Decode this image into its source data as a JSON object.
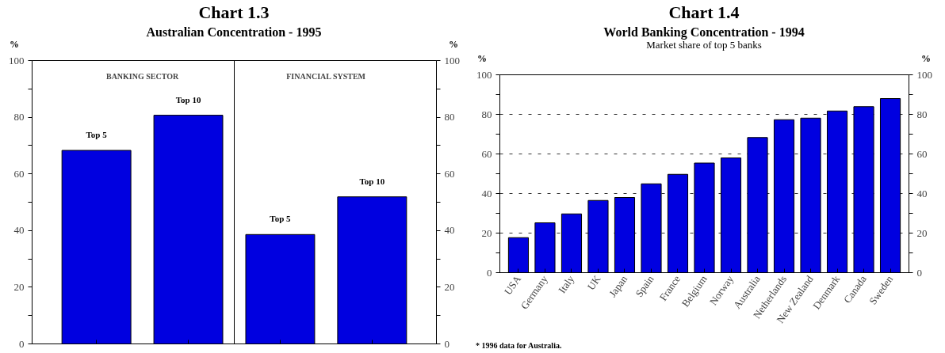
{
  "chart_data": [
    {
      "type": "bar",
      "title": "Chart 1.3",
      "subtitle": "Australian Concentration - 1995",
      "ylabel": "%",
      "y2label": "%",
      "categories": [
        "Top 5",
        "Top 10",
        "Top 5",
        "Top 10"
      ],
      "values": [
        68.3,
        80.7,
        38.6,
        51.9
      ],
      "color": "#0000e0",
      "ylim": [
        0,
        100
      ],
      "yticks": [
        0,
        {
          "value": 10,
          "label": null
        },
        20,
        {
          "value": 30,
          "label": null
        },
        40,
        {
          "value": 50,
          "label": null
        },
        60,
        {
          "value": 70,
          "label": null
        },
        80,
        {
          "value": 90,
          "label": null
        },
        100
      ],
      "y2lim": [
        0,
        100
      ],
      "y2ticks": [
        0,
        {
          "value": 10,
          "label": null
        },
        20,
        {
          "value": 30,
          "label": null
        },
        40,
        {
          "value": 50,
          "label": null
        },
        60,
        {
          "value": 70,
          "label": null
        },
        80,
        {
          "value": 90,
          "label": null
        },
        100
      ],
      "annotations": [
        "BANKING SECTOR",
        "FINANCIAL SYSTEM"
      ],
      "grid": false
    },
    {
      "type": "bar",
      "title": "Chart 1.4",
      "subtitle": "World Banking Concentration - 1994",
      "ylabel": "%",
      "y2label": "%",
      "categories": [
        "USA",
        "Germany",
        "Italy",
        "UK",
        "Japan",
        "Spain",
        "France",
        "Belgium",
        "Norway",
        "Australia",
        "Netherlands",
        "New Zealand",
        "Denmark",
        "Canada",
        "Sweden"
      ],
      "values": [
        17.7,
        25.2,
        29.7,
        36.5,
        38.0,
        44.9,
        49.7,
        55.4,
        58.0,
        68.3,
        77.3,
        78.1,
        81.7,
        83.9,
        88.0
      ],
      "color": "#0000e0",
      "ylim": [
        0,
        100
      ],
      "yticks": [
        0,
        {
          "value": 10,
          "label": null
        },
        20,
        {
          "value": 30,
          "label": null
        },
        40,
        {
          "value": 50,
          "label": null
        },
        60,
        {
          "value": 70,
          "label": null
        },
        80,
        {
          "value": 90,
          "label": null
        },
        100
      ],
      "y2lim": [
        0,
        100
      ],
      "y2ticks": [
        0,
        {
          "value": 10,
          "label": null
        },
        20,
        {
          "value": 30,
          "label": null
        },
        40,
        {
          "value": 50,
          "label": null
        },
        60,
        {
          "value": 70,
          "label": null
        },
        80,
        {
          "value": 90,
          "label": null
        },
        100
      ],
      "annotations": [
        "Market share of top 5 banks",
        "* 1996 data for Australia."
      ],
      "grid": "y",
      "line_style": "dashed"
    }
  ]
}
